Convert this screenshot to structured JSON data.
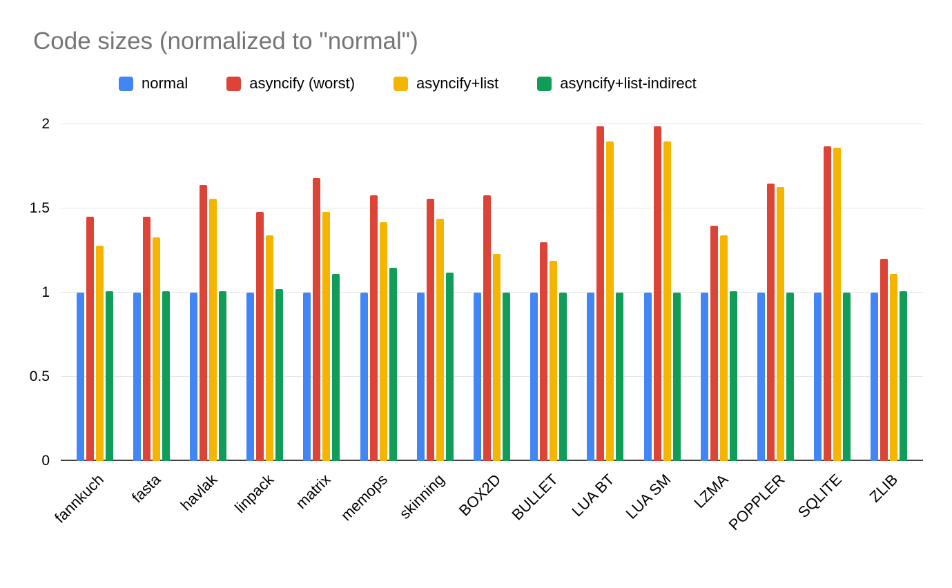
{
  "chart_data": {
    "type": "bar",
    "title": "Code sizes (normalized to \"normal\")",
    "categories": [
      "fannkuch",
      "fasta",
      "havlak",
      "linpack",
      "matrix",
      "memops",
      "skinning",
      "BOX2D",
      "BULLET",
      "LUA BT",
      "LUA SM",
      "LZMA",
      "POPPLER",
      "SQLITE",
      "ZLIB"
    ],
    "series": [
      {
        "name": "normal",
        "color": "#4285F4",
        "values": [
          1.0,
          1.0,
          1.0,
          1.0,
          1.0,
          1.0,
          1.0,
          1.0,
          1.0,
          1.0,
          1.0,
          1.0,
          1.0,
          1.0,
          1.0
        ]
      },
      {
        "name": "asyncify (worst)",
        "color": "#DB4437",
        "values": [
          1.45,
          1.45,
          1.64,
          1.48,
          1.68,
          1.58,
          1.56,
          1.58,
          1.3,
          1.99,
          1.99,
          1.4,
          1.65,
          1.87,
          1.2
        ]
      },
      {
        "name": "asyncify+list",
        "color": "#F4B400",
        "values": [
          1.28,
          1.33,
          1.56,
          1.34,
          1.48,
          1.42,
          1.44,
          1.23,
          1.19,
          1.9,
          1.9,
          1.34,
          1.63,
          1.86,
          1.11
        ]
      },
      {
        "name": "asyncify+list-indirect",
        "color": "#0F9D58",
        "values": [
          1.01,
          1.01,
          1.01,
          1.02,
          1.11,
          1.15,
          1.12,
          1.0,
          1.0,
          1.0,
          1.0,
          1.01,
          1.0,
          1.0,
          1.01
        ]
      }
    ],
    "ylim": [
      0,
      2
    ],
    "yticks": [
      0,
      0.5,
      1,
      1.5,
      2
    ],
    "grid": true,
    "legend_position": "top"
  }
}
